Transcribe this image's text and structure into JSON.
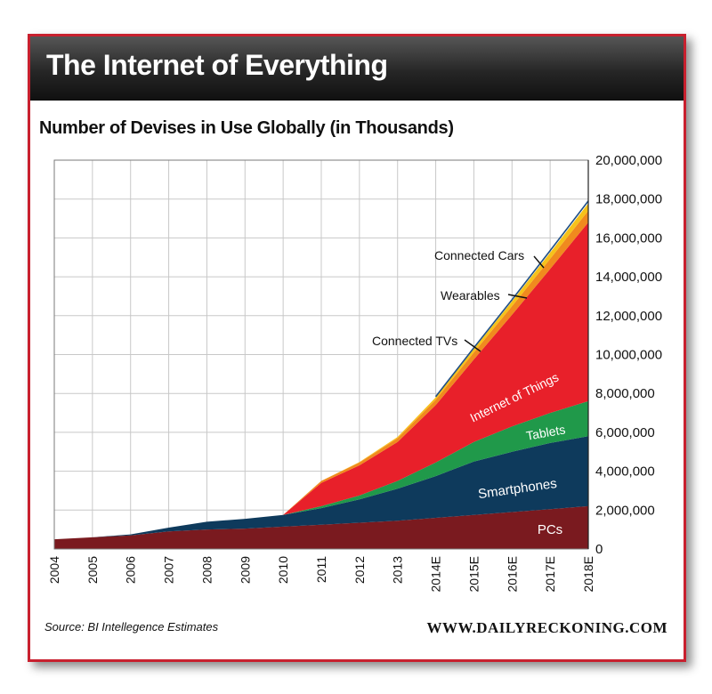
{
  "header": {
    "title": "The Internet of Everything"
  },
  "chart_data": {
    "type": "area",
    "stacked": true,
    "title": "Number of Devises in Use Globally (in Thousands)",
    "xlabel": "",
    "ylabel": "",
    "ylim": [
      0,
      20000000
    ],
    "y_ticks": [
      0,
      2000000,
      4000000,
      6000000,
      8000000,
      10000000,
      12000000,
      14000000,
      16000000,
      18000000,
      20000000
    ],
    "y_tick_labels": [
      "0",
      "2,000,000",
      "4,000,000",
      "6,000,000",
      "8,000,000",
      "10,000,000",
      "12,000,000",
      "14,000,000",
      "16,000,000",
      "18,000,000",
      "20,000,000"
    ],
    "grid": true,
    "categories": [
      "2004",
      "2005",
      "2006",
      "2007",
      "2008",
      "2009",
      "2010",
      "2011",
      "2012",
      "2013",
      "2014E",
      "2015E",
      "2016E",
      "2017E",
      "2018E"
    ],
    "series": [
      {
        "name": "PCs",
        "color": "#7a1a1f",
        "values": [
          500000,
          600000,
          700000,
          900000,
          1000000,
          1050000,
          1150000,
          1250000,
          1350000,
          1450000,
          1600000,
          1750000,
          1900000,
          2050000,
          2200000
        ]
      },
      {
        "name": "Smartphones",
        "color": "#0e3a5c",
        "values": [
          0,
          0,
          50000,
          200000,
          400000,
          500000,
          600000,
          850000,
          1200000,
          1650000,
          2150000,
          2750000,
          3100000,
          3400000,
          3600000
        ]
      },
      {
        "name": "Tablets",
        "color": "#20994a",
        "values": [
          0,
          0,
          0,
          0,
          0,
          0,
          0,
          100000,
          200000,
          400000,
          700000,
          1000000,
          1300000,
          1550000,
          1800000
        ]
      },
      {
        "name": "Internet of Things",
        "color": "#e8202a",
        "values": [
          0,
          0,
          0,
          0,
          0,
          0,
          0,
          1200000,
          1550000,
          2000000,
          2950000,
          4250000,
          5750000,
          7400000,
          9200000
        ]
      },
      {
        "name": "Connected TVs",
        "color": "#f08a1e",
        "values": [
          0,
          0,
          0,
          0,
          0,
          0,
          0,
          100000,
          150000,
          200000,
          280000,
          360000,
          440000,
          520000,
          600000
        ]
      },
      {
        "name": "Wearables",
        "color": "#f6c21a",
        "values": [
          0,
          0,
          0,
          0,
          0,
          0,
          0,
          0,
          20000,
          60000,
          120000,
          180000,
          250000,
          320000,
          380000
        ]
      },
      {
        "name": "Connected Cars",
        "color": "#1f4f86",
        "values": [
          0,
          0,
          0,
          0,
          0,
          0,
          0,
          0,
          0,
          20000,
          40000,
          60000,
          80000,
          100000,
          120000
        ]
      }
    ],
    "area_labels": [
      "PCs",
      "Smartphones",
      "Tablets",
      "Internet of Things"
    ],
    "callout_labels": [
      "Connected Cars",
      "Wearables",
      "Connected TVs"
    ]
  },
  "footer": {
    "source": "Source: BI Intellegence Estimates",
    "site": "WWW.DAILYRECKONING.COM"
  }
}
